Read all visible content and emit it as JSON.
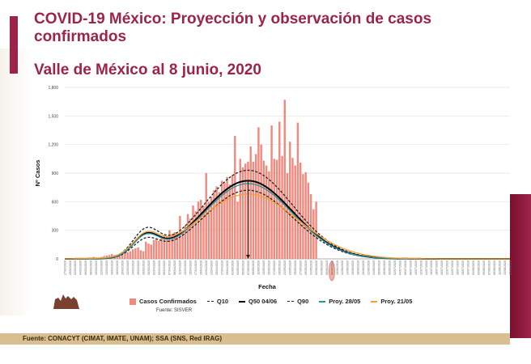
{
  "slide": {
    "title": "COVID-19 México: Proyección y observación de casos confirmados",
    "subtitle": "Valle de México al 8 junio, 2020",
    "footer": "Fuente: CONACYT (CIMAT, IMATE, UNAM);   SSA (SNS, Red IRAG)",
    "accent": "#9d2449"
  },
  "chart_data": {
    "type": "bar",
    "xlabel": "Fecha",
    "ylabel": "Nº Casos",
    "ylim": [
      0,
      1800
    ],
    "yticks": [
      "0",
      "300",
      "600",
      "900",
      "1,200",
      "1,500",
      "1,800"
    ],
    "ytick_values": [
      0,
      300,
      600,
      900,
      1200,
      1500,
      1800
    ],
    "x_start": "27/02/2020",
    "x_range_days": [
      0,
      170
    ],
    "highlighted_tick": "08/06/2020",
    "peak_day_label": "08/05/2020",
    "xticks": [
      "27/02/2020",
      "29/02/2020",
      "02/03/2020",
      "04/03/2020",
      "06/03/2020",
      "08/03/2020",
      "10/03/2020",
      "12/03/2020",
      "14/03/2020",
      "16/03/2020",
      "18/03/2020",
      "20/03/2020",
      "22/03/2020",
      "24/03/2020",
      "26/03/2020",
      "28/03/2020",
      "30/03/2020",
      "01/04/2020",
      "03/04/2020",
      "05/04/2020",
      "07/04/2020",
      "09/04/2020",
      "11/04/2020",
      "13/04/2020",
      "15/04/2020",
      "17/04/2020",
      "19/04/2020",
      "21/04/2020",
      "23/04/2020",
      "25/04/2020",
      "27/04/2020",
      "29/04/2020",
      "01/05/2020",
      "03/05/2020",
      "05/05/2020",
      "07/05/2020",
      "09/05/2020",
      "11/05/2020",
      "13/05/2020",
      "15/05/2020",
      "17/05/2020",
      "19/05/2020",
      "21/05/2020",
      "23/05/2020",
      "25/05/2020",
      "27/05/2020",
      "29/05/2020",
      "31/05/2020",
      "02/06/2020",
      "04/06/2020",
      "06/06/2020",
      "08/06/2020",
      "10/06/2020",
      "12/06/2020",
      "14/06/2020",
      "16/06/2020",
      "18/06/2020",
      "20/06/2020",
      "22/06/2020",
      "24/06/2020",
      "26/06/2020",
      "28/06/2020",
      "30/06/2020",
      "02/07/2020",
      "04/07/2020",
      "06/07/2020",
      "08/07/2020",
      "10/07/2020",
      "12/07/2020",
      "14/07/2020",
      "16/07/2020",
      "18/07/2020",
      "20/07/2020",
      "22/07/2020",
      "24/07/2020",
      "26/07/2020",
      "28/07/2020",
      "30/07/2020",
      "01/08/2020",
      "03/08/2020",
      "05/08/2020",
      "07/08/2020",
      "09/08/2020",
      "11/08/2020",
      "13/08/2020",
      "15/08/2020"
    ],
    "bars": {
      "name": "Casos Confirmados",
      "source": "Fuente: SISVER",
      "color": "#f08a7e",
      "values": [
        0,
        0,
        0,
        0,
        0,
        0,
        1,
        1,
        2,
        3,
        5,
        20,
        15,
        15,
        20,
        30,
        35,
        40,
        50,
        40,
        20,
        30,
        40,
        60,
        70,
        80,
        100,
        110,
        120,
        90,
        80,
        180,
        160,
        150,
        200,
        210,
        190,
        220,
        250,
        230,
        300,
        260,
        280,
        270,
        450,
        300,
        350,
        470,
        420,
        560,
        500,
        600,
        620,
        560,
        900,
        600,
        650,
        720,
        760,
        700,
        820,
        800,
        860,
        780,
        880,
        1290,
        600,
        1050,
        960,
        1000,
        1020,
        1180,
        1020,
        1100,
        1380,
        1200,
        1030,
        980,
        920,
        1400,
        1050,
        1040,
        1440,
        1080,
        1670,
        900,
        1230,
        1060,
        980,
        1430,
        1010,
        890,
        910,
        800,
        680,
        520,
        600
      ]
    },
    "series": [
      {
        "name": "Q10",
        "color": "#222222",
        "style": "dashed",
        "bump_peak": 170,
        "peak": 720,
        "peak_day": 70
      },
      {
        "name": "Q50 04/06",
        "color": "#000000",
        "style": "solid",
        "bump_peak": 210,
        "peak": 820,
        "peak_day": 70
      },
      {
        "name": "Q90",
        "color": "#222222",
        "style": "dashed",
        "bump_peak": 260,
        "peak": 930,
        "peak_day": 70
      },
      {
        "name": "Proy. 28/05",
        "color": "#2a8fa0",
        "style": "solid",
        "bump_peak": 205,
        "peak": 790,
        "peak_day": 70
      },
      {
        "name": "Proy. 21/05",
        "color": "#f5a030",
        "style": "solid",
        "bump_peak": 200,
        "peak": 680,
        "peak_day": 70
      }
    ]
  }
}
